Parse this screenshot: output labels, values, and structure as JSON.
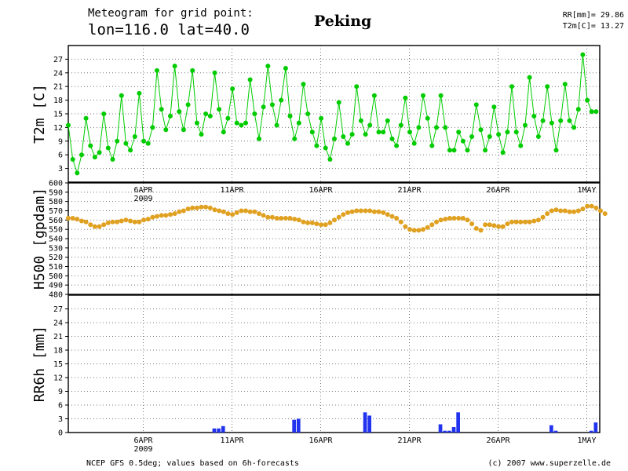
{
  "header": {
    "title_line1": "Meteogram for grid point:",
    "title_line2": "lon=116.0 lat=40.0",
    "location": "Peking",
    "summary_rr": "RR[mm]= 29.86",
    "summary_t2m": "T2m[C]= 13.27"
  },
  "footer": {
    "source": "NCEP GFS 0.5deg; values based on 6h-forecasts",
    "copyright": "(c) 2007 www.superzelle.de"
  },
  "colors": {
    "t2m": "#00cc00",
    "h500": "#e0a020",
    "rr6h": "#2233ee"
  },
  "date_axis": {
    "start": "2009-04-01",
    "labels": [
      {
        "day": 5,
        "label": "6APR",
        "sub": "2009"
      },
      {
        "day": 10,
        "label": "11APR"
      },
      {
        "day": 15,
        "label": "16APR"
      },
      {
        "day": 20,
        "label": "21APR"
      },
      {
        "day": 25,
        "label": "26APR"
      },
      {
        "day": 30,
        "label": "1MAY"
      }
    ]
  },
  "chart_data": [
    {
      "type": "line",
      "ylabel": "T2m [C]",
      "ylim": [
        0,
        30
      ],
      "yticks": [
        3,
        6,
        9,
        12,
        15,
        18,
        21,
        24,
        27
      ],
      "series": [
        {
          "values": [
            12.5,
            5,
            2,
            6,
            14,
            8,
            5.5,
            6.5,
            15,
            7.5,
            5,
            9,
            19,
            8.5,
            7,
            10,
            19.5,
            9,
            8.5,
            12,
            24.5,
            16,
            11.5,
            14.5,
            25.5,
            15.5,
            11.5,
            17,
            24.5,
            13,
            10.5,
            15,
            14.5,
            24,
            16,
            11,
            14,
            20.5,
            13,
            12.5,
            13,
            22.5,
            15,
            9.5,
            16.5,
            25.5,
            17,
            12.5,
            18,
            25,
            14.5,
            9.5,
            13,
            21.5,
            15,
            11,
            8,
            14,
            7.5,
            5,
            9.5,
            17.5,
            10,
            8.5,
            10.5,
            21,
            13.5,
            10.5,
            12.5,
            19,
            11,
            11,
            13.5,
            9.5,
            8,
            12.5,
            18.5,
            11,
            8.5,
            12,
            19,
            14,
            8,
            12,
            19,
            12,
            7,
            7,
            11,
            9,
            7,
            10,
            17,
            11.5,
            7,
            10,
            16.5,
            10.5,
            6.5,
            11,
            21,
            11,
            8,
            12.5,
            23,
            14.5,
            10,
            13.5,
            21,
            13,
            7,
            13.5,
            21.5,
            13.5,
            12,
            16,
            28,
            18,
            15.5,
            15.5
          ]
        }
      ]
    },
    {
      "type": "line",
      "ylabel": "H500 [gpdam]",
      "ylim": [
        480,
        600
      ],
      "yticks": [
        480,
        490,
        500,
        510,
        520,
        530,
        540,
        550,
        560,
        570,
        580,
        590,
        600
      ],
      "series": [
        {
          "values": [
            562,
            562,
            561,
            559,
            558,
            555,
            553,
            553,
            555,
            557,
            558,
            558,
            559,
            560,
            559,
            558,
            558,
            560,
            561,
            563,
            564,
            565,
            565,
            566,
            567,
            569,
            570,
            572,
            573,
            573,
            574,
            574,
            573,
            571,
            570,
            569,
            567,
            566,
            568,
            570,
            570,
            569,
            569,
            567,
            565,
            563,
            563,
            562,
            562,
            562,
            562,
            561,
            560,
            558,
            557,
            557,
            556,
            555,
            555,
            557,
            560,
            563,
            566,
            568,
            569,
            570,
            570,
            570,
            570,
            569,
            569,
            568,
            566,
            564,
            562,
            558,
            553,
            550,
            549,
            549,
            550,
            552,
            555,
            558,
            560,
            561,
            562,
            562,
            562,
            562,
            560,
            556,
            551,
            549,
            555,
            555,
            554,
            553,
            553,
            556,
            558,
            558,
            558,
            558,
            558,
            559,
            560,
            563,
            567,
            570,
            571,
            570,
            570,
            569,
            569,
            570,
            572,
            575,
            575,
            573,
            570,
            567
          ]
        }
      ]
    },
    {
      "type": "bar",
      "ylabel": "RR6h [mm]",
      "ylim": [
        0,
        30
      ],
      "yticks": [
        0,
        3,
        6,
        9,
        12,
        15,
        18,
        21,
        24,
        27
      ],
      "bars": [
        {
          "t": 9.0,
          "v": 0.9
        },
        {
          "t": 9.25,
          "v": 0.9
        },
        {
          "t": 9.5,
          "v": 1.4
        },
        {
          "t": 13.5,
          "v": 2.8
        },
        {
          "t": 13.75,
          "v": 3.0
        },
        {
          "t": 17.5,
          "v": 4.4
        },
        {
          "t": 17.75,
          "v": 3.7
        },
        {
          "t": 21.75,
          "v": 1.8
        },
        {
          "t": 22.0,
          "v": 0.4
        },
        {
          "t": 22.25,
          "v": 0.4
        },
        {
          "t": 22.5,
          "v": 1.2
        },
        {
          "t": 22.75,
          "v": 4.4
        },
        {
          "t": 28.0,
          "v": 1.6
        },
        {
          "t": 28.25,
          "v": 0.4
        },
        {
          "t": 30.25,
          "v": 0.4
        },
        {
          "t": 30.5,
          "v": 2.2
        }
      ]
    }
  ]
}
